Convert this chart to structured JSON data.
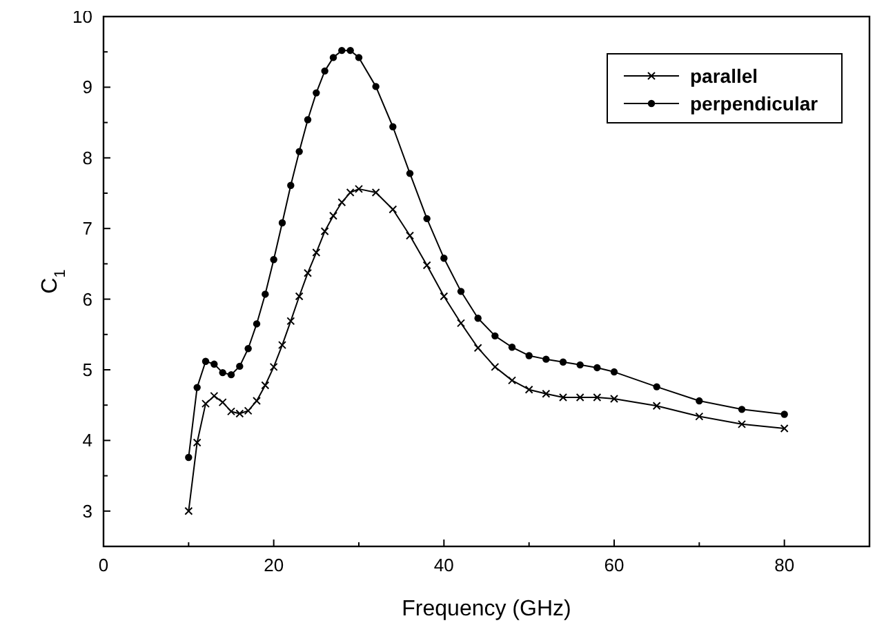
{
  "chart_data": {
    "type": "line",
    "xlabel": "Frequency (GHz)",
    "ylabel": "C$_{1}$",
    "xlim": [
      0,
      90
    ],
    "ylim": [
      2.5,
      10
    ],
    "xticks": [
      0,
      {
        "value": 10,
        "label": null
      },
      20,
      {
        "value": 30,
        "label": null
      },
      40,
      {
        "value": 50,
        "label": null
      },
      60,
      {
        "value": 70,
        "label": null
      },
      80
    ],
    "yticks": [
      3,
      {
        "value": 3.5,
        "label": null
      },
      4,
      {
        "value": 4.5,
        "label": null
      },
      5,
      {
        "value": 5.5,
        "label": null
      },
      6,
      {
        "value": 6.5,
        "label": null
      },
      7,
      {
        "value": 7.5,
        "label": null
      },
      8,
      {
        "value": 8.5,
        "label": null
      },
      9,
      {
        "value": 9.5,
        "label": null
      },
      10
    ],
    "grid": false,
    "legend": "top right",
    "line_style": "solid",
    "x": [
      10,
      11,
      12,
      13,
      14,
      15,
      16,
      17,
      18,
      19,
      20,
      21,
      22,
      23,
      24,
      25,
      26,
      27,
      28,
      29,
      30,
      32,
      34,
      36,
      38,
      40,
      42,
      44,
      46,
      48,
      50,
      52,
      54,
      56,
      58,
      60,
      65,
      70,
      75,
      80
    ],
    "series": [
      {
        "name": "parallel",
        "color": "#000000",
        "marker": "cross",
        "values": [
          3.0,
          3.97,
          4.52,
          4.63,
          4.54,
          4.41,
          4.38,
          4.42,
          4.56,
          4.78,
          5.04,
          5.35,
          5.69,
          6.04,
          6.37,
          6.66,
          6.96,
          7.18,
          7.37,
          7.51,
          7.56,
          7.51,
          7.27,
          6.9,
          6.48,
          6.04,
          5.66,
          5.31,
          5.04,
          4.85,
          4.72,
          4.66,
          4.61,
          4.61,
          4.61,
          4.59,
          4.49,
          4.34,
          4.23,
          4.17
        ]
      },
      {
        "name": "perpendicular",
        "color": "#000000",
        "marker": "circle",
        "values": [
          3.76,
          4.75,
          5.12,
          5.08,
          4.96,
          4.93,
          5.05,
          5.3,
          5.65,
          6.07,
          6.56,
          7.08,
          7.61,
          8.09,
          8.54,
          8.92,
          9.23,
          9.42,
          9.52,
          9.52,
          9.42,
          9.01,
          8.44,
          7.78,
          7.14,
          6.58,
          6.11,
          5.73,
          5.48,
          5.32,
          5.2,
          5.15,
          5.11,
          5.07,
          5.03,
          4.97,
          4.76,
          4.56,
          4.44,
          4.37
        ]
      }
    ]
  }
}
